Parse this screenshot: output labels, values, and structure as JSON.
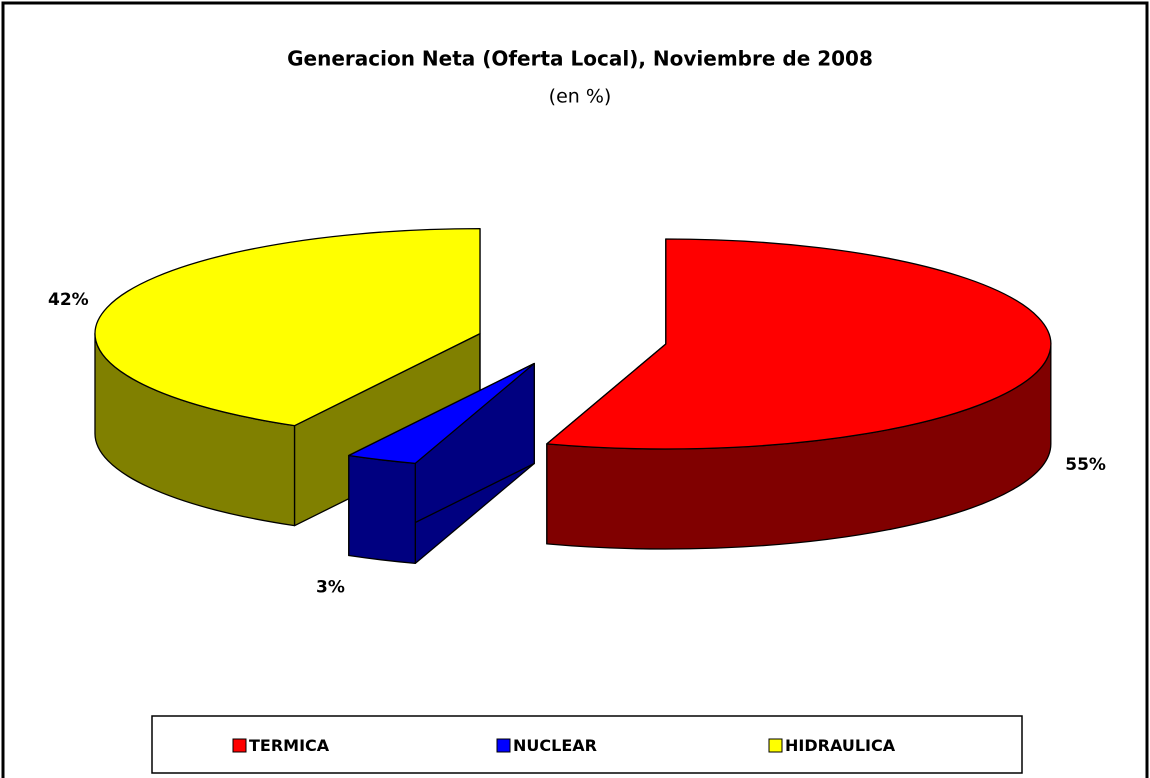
{
  "chart_data": {
    "type": "pie3d",
    "title": "Generacion Neta (Oferta Local), Noviembre de 2008",
    "subtitle": "(en %)",
    "categories": [
      "TERMICA",
      "NUCLEAR",
      "HIDRAULICA"
    ],
    "values": [
      55,
      3,
      42
    ],
    "value_labels": [
      "55%",
      "3%",
      "42%"
    ],
    "colors": [
      "#ff0000",
      "#0000ff",
      "#ffff00"
    ],
    "legend": "bottom"
  }
}
